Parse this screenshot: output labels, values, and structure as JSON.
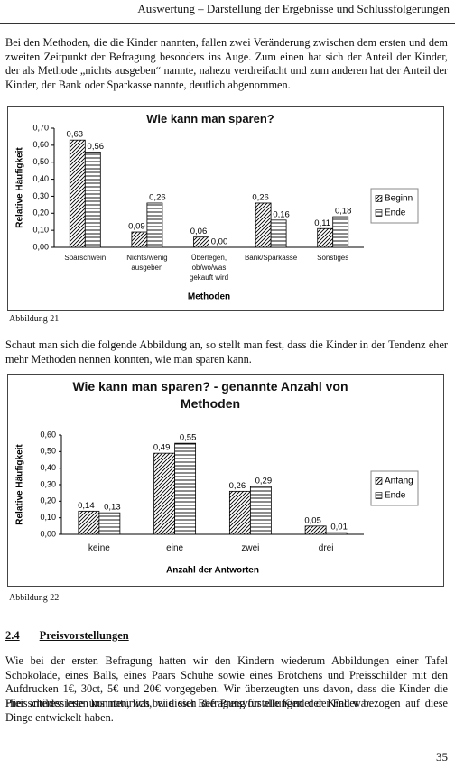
{
  "header": "Auswertung – Darstellung der Ergebnisse und Schlussfolgerungen",
  "paragraphs": [
    "Bei den Methoden, die die Kinder nannten, fallen zwei Veränderung zwischen dem ersten und dem zweiten Zeitpunkt der Befragung besonders ins Auge. Zum einen hat sich der Anteil der Kinder, der als Methode „nichts ausgeben“ nannte, nahezu verdreifacht und zum anderen hat der Anteil der Kinder, der Bank oder Sparkasse nannte, deutlich abgenommen.",
    "Schaut man sich die folgende Abbildung an, so stellt man fest, dass die Kinder in der Tendenz eher mehr Methoden nennen konnten, wie man sparen kann.",
    "Wie bei der ersten Befragung hatten wir den Kindern wiederum Abbildungen einer Tafel Schokolade, eines Balls, eines Paars Schuhe sowie eines Brötchens und Preisschilder mit den Aufdrucken 1€, 30ct, 5€ und 20€ vorgegeben. Wir überzeugten uns davon, dass die Kinder die Preisschilder lesen konnten, was bei dieser Befragung für alle Kinder der Fall war.",
    "Hier interessierte uns natürlich, wie sich die Preisvorstellungen der Kinder bezogen auf diese Dinge entwickelt haben."
  ],
  "captions": [
    "Abbildung 21",
    "Abbildung 22"
  ],
  "section": {
    "number": "2.4",
    "title": "Preisvorstellungen"
  },
  "page_number": "35",
  "chart_data": [
    {
      "type": "bar",
      "title": "Wie kann man sparen?",
      "y_label": "Relative Häufigkeit",
      "x_label": "Methoden",
      "categories": [
        "Sparschwein",
        "Nichts/wenig ausgeben",
        "Überlegen, ob/wo/was gekauft wird",
        "Bank/Sparkasse",
        "Sonstiges"
      ],
      "series": [
        {
          "name": "Beginn",
          "pattern": "diagonal",
          "values": [
            0.63,
            0.09,
            0.06,
            0.26,
            0.11
          ],
          "value_labels": [
            "0,63",
            "0,09",
            "0,06",
            "0,26",
            "0,11"
          ]
        },
        {
          "name": "Ende",
          "pattern": "horizontal",
          "values": [
            0.56,
            0.26,
            0.0,
            0.16,
            0.18
          ],
          "value_labels": [
            "0,56",
            "0,26",
            "0,00",
            "0,16",
            "0,18"
          ]
        }
      ],
      "ylim": [
        0,
        0.7
      ],
      "yticks": [
        {
          "value": 0,
          "label": "0,00"
        },
        {
          "value": 0.1,
          "label": "0,10"
        },
        {
          "value": 0.2,
          "label": "0,20"
        },
        {
          "value": 0.3,
          "label": "0,30"
        },
        {
          "value": 0.4,
          "label": "0,40"
        },
        {
          "value": 0.5,
          "label": "0,50"
        },
        {
          "value": 0.6,
          "label": "0,60"
        },
        {
          "value": 0.7,
          "label": "0,70"
        }
      ],
      "legend": "right"
    },
    {
      "type": "bar",
      "title": "Wie kann man sparen? - genannte Anzahl von Methoden",
      "y_label": "Relative Häufigkeit",
      "x_label": "Anzahl der Antworten",
      "categories": [
        "keine",
        "eine",
        "zwei",
        "drei"
      ],
      "series": [
        {
          "name": "Anfang",
          "pattern": "diagonal",
          "values": [
            0.14,
            0.49,
            0.26,
            0.05
          ],
          "value_labels": [
            "0,14",
            "0,49",
            "0,26",
            "0,05"
          ]
        },
        {
          "name": "Ende",
          "pattern": "horizontal",
          "values": [
            0.13,
            0.55,
            0.29,
            0.01
          ],
          "value_labels": [
            "0,13",
            "0,55",
            "0,29",
            "0,01"
          ]
        }
      ],
      "ylim": [
        0,
        0.6
      ],
      "yticks": [
        {
          "value": 0,
          "label": "0,00"
        },
        {
          "value": 0.1,
          "label": "0,10"
        },
        {
          "value": 0.2,
          "label": "0,20"
        },
        {
          "value": 0.3,
          "label": "0,30"
        },
        {
          "value": 0.4,
          "label": "0,40"
        },
        {
          "value": 0.5,
          "label": "0,50"
        },
        {
          "value": 0.6,
          "label": "0,60"
        }
      ],
      "legend": "right"
    }
  ]
}
